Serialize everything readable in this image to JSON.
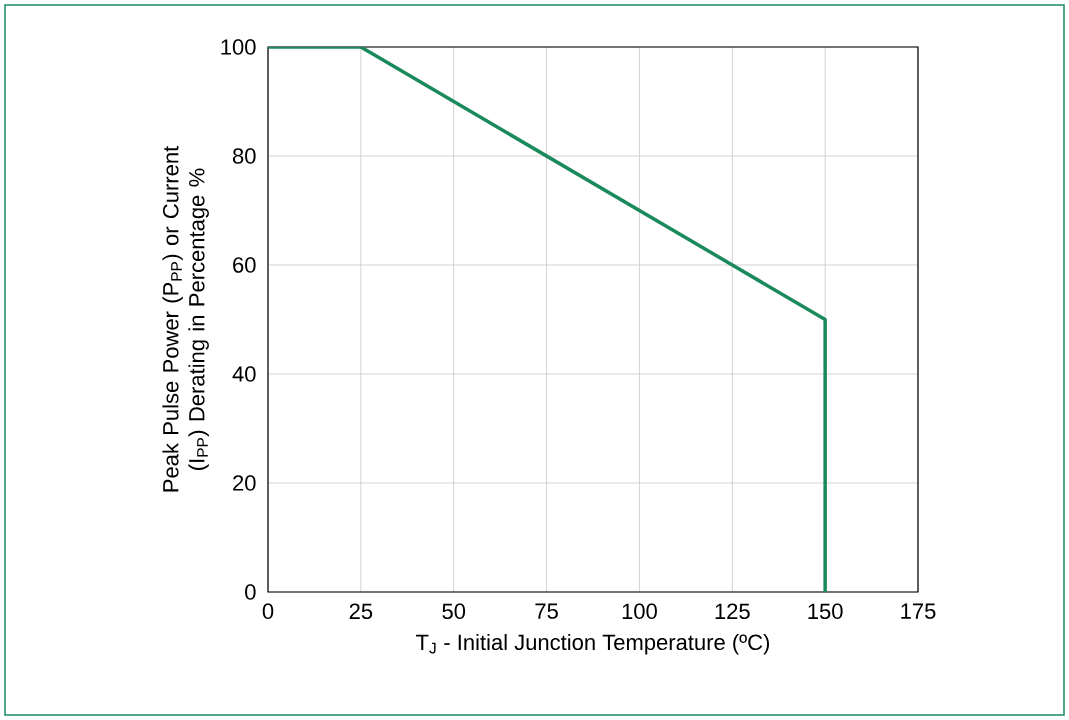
{
  "chart_data": {
    "type": "line",
    "xlabel": "T$_{J}$ - Initial Junction Temperature (ºC)",
    "ylabel": "Peak Pulse Power (P$_{PP}$) or Current (I$_{PP}$) Derating in Percentage %",
    "x": [
      0,
      25,
      150,
      150
    ],
    "series": [
      {
        "color": "#1a8a5c",
        "values": [
          100,
          100,
          50,
          0
        ]
      }
    ],
    "xlim": [
      0,
      175
    ],
    "ylim": [
      0,
      100
    ],
    "xticks": [
      0,
      25,
      50,
      75,
      100,
      125,
      150,
      175
    ],
    "yticks": [
      0,
      20,
      40,
      60,
      80,
      100
    ],
    "grid": true,
    "marker": "none",
    "line_style": "solid"
  }
}
